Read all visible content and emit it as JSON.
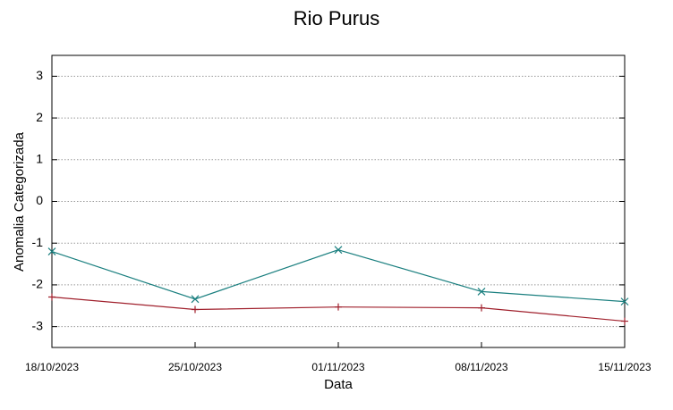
{
  "chart_data": {
    "type": "line",
    "title": "Rio Purus",
    "y_label": "Anomalia Categorizada",
    "x_label": "Data",
    "categories": [
      "18/10/2023",
      "25/10/2023",
      "01/11/2023",
      "08/11/2023",
      "15/11/2023"
    ],
    "series": [
      {
        "color": "#a0202c",
        "marker": "+",
        "values": [
          -2.29,
          -2.59,
          -2.53,
          -2.55,
          -2.87
        ]
      },
      {
        "color": "#1a7f7f",
        "marker": "x",
        "values": [
          -1.2,
          -2.34,
          -1.16,
          -2.16,
          -2.4
        ]
      }
    ],
    "ylim": [
      -3.5,
      3.5
    ],
    "yticks": [
      -3,
      -2,
      -1,
      0,
      1,
      2,
      3
    ],
    "grid": true
  }
}
